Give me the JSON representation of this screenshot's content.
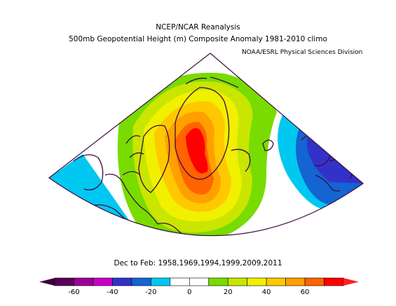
{
  "header": {
    "line1": "NCEP/NCAR Reanalysis",
    "line2": "500mb Geopotential Height (m) Composite Anomaly 1981-2010 climo",
    "org": "NOAA/ESRL Physical Sciences Division"
  },
  "footer": {
    "period": "Dec to Feb: 1958,1969,1994,1999,2009,2011"
  },
  "colorbar": {
    "colors": [
      "#5a005a",
      "#9b009b",
      "#c800c8",
      "#3232c8",
      "#1464d2",
      "#00c8f0",
      "#ffffff",
      "#ffffff",
      "#78dc00",
      "#c8e600",
      "#f0f000",
      "#ffc800",
      "#ffa000",
      "#ff6400",
      "#ff0000"
    ],
    "tick_labels": [
      "-60",
      "-40",
      "-20",
      "0",
      "20",
      "40",
      "60"
    ]
  },
  "map": {
    "anomaly_colors": {
      "pos_light": "#78dc00",
      "pos_yellowgreen": "#c8e600",
      "pos_yellow": "#f0f000",
      "pos_orange_light": "#ffc800",
      "pos_orange": "#ffa000",
      "pos_red_orange": "#ff6400",
      "pos_red": "#ff0000",
      "neg_cyan": "#00c8f0",
      "neg_blue": "#1464d2",
      "neg_indigo": "#3232c8",
      "coast": "#3c0a3c"
    }
  }
}
